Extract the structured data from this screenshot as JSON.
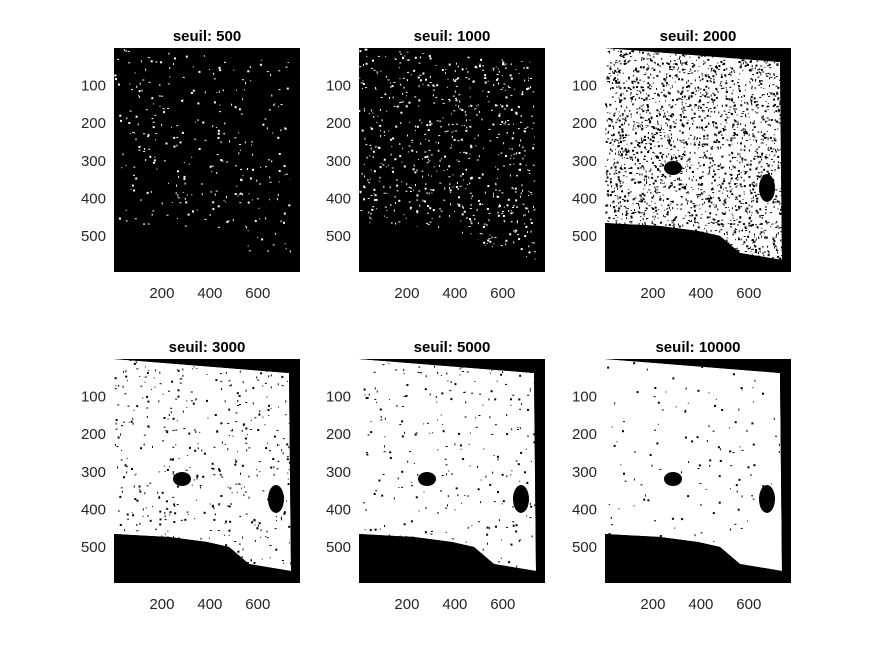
{
  "chart_data": [
    {
      "type": "heatmap",
      "title": "seuil: 500",
      "threshold": 500,
      "xlim": [
        0,
        776
      ],
      "ylim": [
        0,
        596
      ],
      "xticks": [
        200,
        400,
        600
      ],
      "yticks": [
        100,
        200,
        300,
        400,
        500
      ],
      "colormap": [
        "#000000",
        "#ffffff"
      ],
      "white_fraction": 0.06
    },
    {
      "type": "heatmap",
      "title": "seuil: 1000",
      "threshold": 1000,
      "xlim": [
        0,
        776
      ],
      "ylim": [
        0,
        596
      ],
      "xticks": [
        200,
        400,
        600
      ],
      "yticks": [
        100,
        200,
        300,
        400,
        500
      ],
      "colormap": [
        "#000000",
        "#ffffff"
      ],
      "white_fraction": 0.14
    },
    {
      "type": "heatmap",
      "title": "seuil: 2000",
      "threshold": 2000,
      "xlim": [
        0,
        776
      ],
      "ylim": [
        0,
        596
      ],
      "xticks": [
        200,
        400,
        600
      ],
      "yticks": [
        100,
        200,
        300,
        400,
        500
      ],
      "colormap": [
        "#000000",
        "#ffffff"
      ],
      "white_fraction": 0.62
    },
    {
      "type": "heatmap",
      "title": "seuil: 3000",
      "threshold": 3000,
      "xlim": [
        0,
        776
      ],
      "ylim": [
        0,
        596
      ],
      "xticks": [
        200,
        400,
        600
      ],
      "yticks": [
        100,
        200,
        300,
        400,
        500
      ],
      "colormap": [
        "#000000",
        "#ffffff"
      ],
      "white_fraction": 0.93
    },
    {
      "type": "heatmap",
      "title": "seuil: 5000",
      "threshold": 5000,
      "xlim": [
        0,
        776
      ],
      "ylim": [
        0,
        596
      ],
      "xticks": [
        200,
        400,
        600
      ],
      "yticks": [
        100,
        200,
        300,
        400,
        500
      ],
      "colormap": [
        "#000000",
        "#ffffff"
      ],
      "white_fraction": 0.96
    },
    {
      "type": "heatmap",
      "title": "seuil: 10000",
      "threshold": 10000,
      "xlim": [
        0,
        776
      ],
      "ylim": [
        0,
        596
      ],
      "xticks": [
        200,
        400,
        600
      ],
      "yticks": [
        100,
        200,
        300,
        400,
        500
      ],
      "colormap": [
        "#000000",
        "#ffffff"
      ],
      "white_fraction": 0.98
    }
  ]
}
